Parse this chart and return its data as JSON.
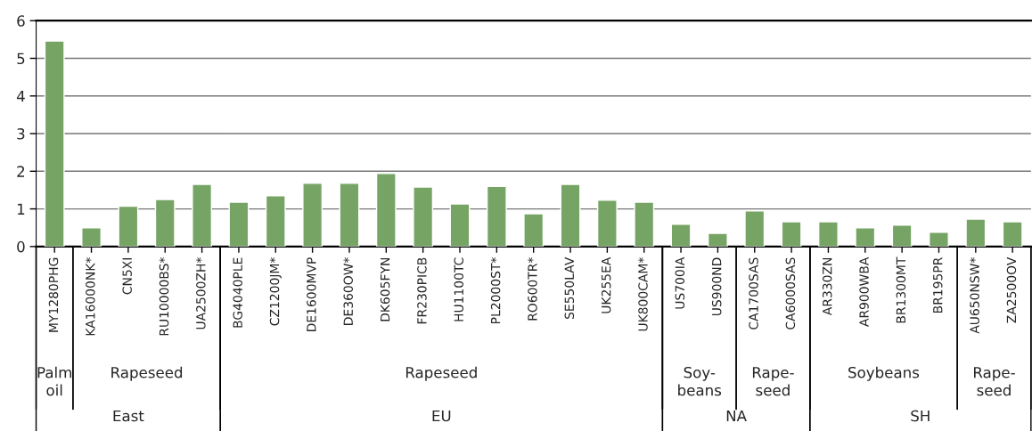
{
  "chart_data": {
    "type": "bar",
    "categories": [
      "MY1280PHG",
      "KA16000NK*",
      "CN5XI",
      "RU10000BS*",
      "UA2500ZH*",
      "BG4040PLE",
      "CZ1200JM*",
      "DE1600MVP",
      "DE360OW*",
      "DK605FYN",
      "FR230PICB",
      "HU1100TC",
      "PL2000ST*",
      "RO600TR*",
      "SE550LAV",
      "UK255EA",
      "UK800CAM*",
      "US700IA",
      "US900ND",
      "CA1700SAS",
      "CA6000SAS",
      "AR330ZN",
      "AR900WBA",
      "BR1300MT",
      "BR195PR",
      "AU650NSW*",
      "ZA2500OV"
    ],
    "values": [
      5.46,
      0.5,
      1.07,
      1.25,
      1.65,
      1.18,
      1.35,
      1.68,
      1.68,
      1.94,
      1.58,
      1.13,
      1.6,
      0.87,
      1.65,
      1.23,
      1.18,
      0.59,
      0.35,
      0.95,
      0.66,
      0.66,
      0.5,
      0.57,
      0.38,
      0.73,
      0.66
    ],
    "color": "#76a464",
    "ylim": [
      0,
      6
    ],
    "yticks": [
      0,
      1,
      2,
      3,
      4,
      5,
      6
    ],
    "grid": "y",
    "annotations": [
      "Palm\noil",
      "Rapeseed",
      "Rapeseed",
      "Soy-\nbeans",
      "Rape-\nseed",
      "Soybeans",
      "Rape-\nseed",
      "East",
      "EU",
      "NA",
      "SH"
    ]
  }
}
